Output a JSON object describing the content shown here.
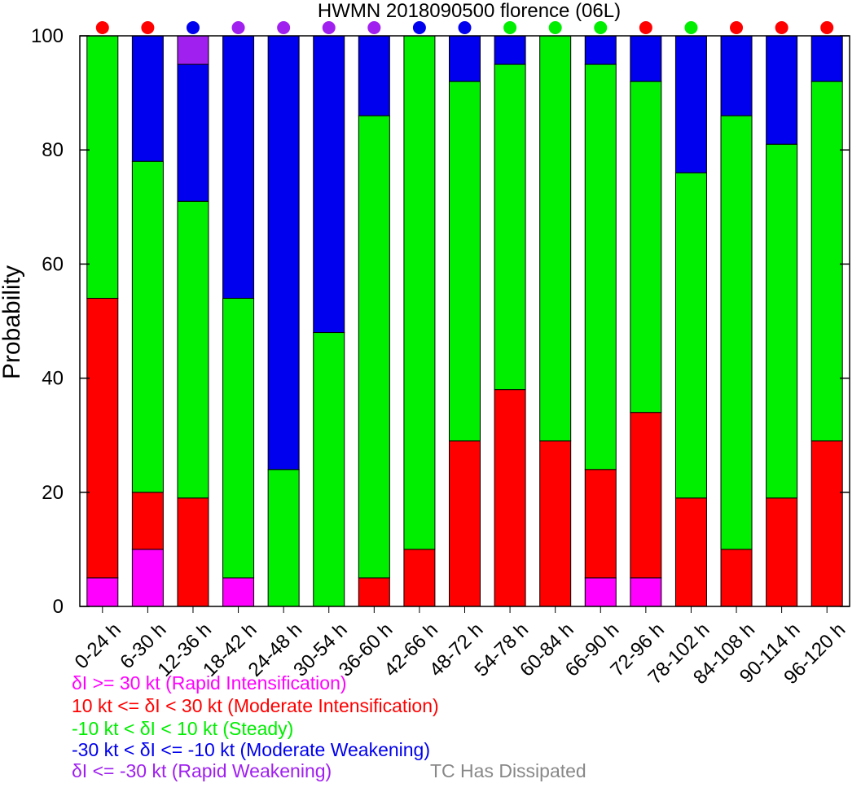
{
  "chart_data": {
    "type": "bar",
    "stacked": true,
    "title": "HWMN 2018090500 florence (06L)",
    "xlabel": "",
    "ylabel": "Probability",
    "ylim": [
      0,
      100
    ],
    "yticks": [
      "0",
      "20",
      "40",
      "60",
      "80",
      "100"
    ],
    "categories": [
      "0-24 h",
      "6-30 h",
      "12-36 h",
      "18-42 h",
      "24-48 h",
      "30-54 h",
      "36-60 h",
      "42-66 h",
      "48-72 h",
      "54-78 h",
      "60-84 h",
      "66-90 h",
      "72-96 h",
      "78-102 h",
      "84-108 h",
      "90-114 h",
      "96-120 h"
    ],
    "series": [
      {
        "name": "δI >= 30 kt (Rapid Intensification)",
        "color": "#ff00ff",
        "values": [
          5,
          10,
          0,
          5,
          0,
          0,
          0,
          0,
          0,
          0,
          0,
          5,
          5,
          0,
          0,
          0,
          0
        ]
      },
      {
        "name": "10 kt <= δI < 30 kt (Moderate Intensification)",
        "color": "#ff0000",
        "values": [
          49,
          10,
          19,
          0,
          0,
          0,
          5,
          10,
          29,
          38,
          29,
          19,
          29,
          19,
          10,
          19,
          29
        ]
      },
      {
        "name": "-10 kt < δI < 10 kt (Steady)",
        "color": "#00ee00",
        "values": [
          46,
          58,
          52,
          49,
          24,
          48,
          81,
          90,
          63,
          57,
          71,
          71,
          58,
          57,
          76,
          62,
          63
        ]
      },
      {
        "name": "-30 kt < δI <= -10 kt (Moderate Weakening)",
        "color": "#0000ee",
        "values": [
          0,
          22,
          24,
          46,
          76,
          52,
          14,
          0,
          8,
          5,
          0,
          5,
          8,
          24,
          14,
          19,
          8
        ]
      },
      {
        "name": "δI <= -30 kt (Rapid Weakening)",
        "color": "#a020f0",
        "values": [
          0,
          0,
          5,
          0,
          0,
          0,
          0,
          0,
          0,
          0,
          0,
          0,
          0,
          0,
          0,
          0,
          0
        ]
      }
    ],
    "top_dot_colors": [
      "#ff0000",
      "#ff0000",
      "#0000ee",
      "#a020f0",
      "#a020f0",
      "#a020f0",
      "#a020f0",
      "#0000ee",
      "#0000ee",
      "#00ee00",
      "#00ee00",
      "#00ee00",
      "#ff0000",
      "#00ee00",
      "#ff0000",
      "#ff0000",
      "#ff0000"
    ],
    "grid": false,
    "legend_placement": "bottom-left"
  },
  "legend": {
    "items": [
      {
        "label": "δI >= 30 kt (Rapid Intensification)",
        "color": "#ff00ff"
      },
      {
        "label": "10 kt <= δI < 30 kt (Moderate Intensification)",
        "color": "#ff0000"
      },
      {
        "label": "-10 kt < δI < 10 kt (Steady)",
        "color": "#00ee00"
      },
      {
        "label": "-30 kt < δI <= -10 kt (Moderate Weakening)",
        "color": "#0000ee"
      },
      {
        "label": "δI <= -30 kt (Rapid Weakening)",
        "color": "#a020f0"
      }
    ],
    "dissipated_label": "TC Has Dissipated",
    "dissipated_color": "#888888"
  }
}
